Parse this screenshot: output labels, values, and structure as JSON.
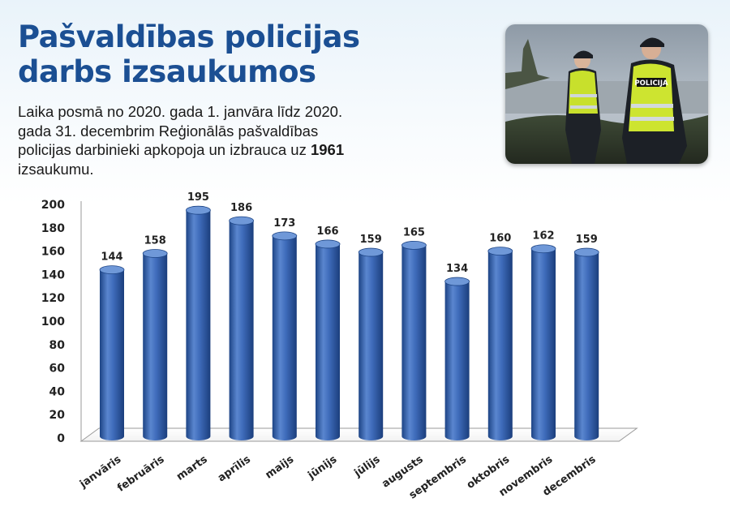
{
  "header": {
    "title_line1": "Pašvaldības policijas",
    "title_line2": "darbs izsaukumos"
  },
  "intro": {
    "text_before": "Laika posmā no 2020. gada 1. janvāra līdz 2020. gada 31. decembrim Reģionālās pašvaldības policijas darbinieki apkopoja un izbrauca uz ",
    "highlight": "1961",
    "text_after": " izsaukumu."
  },
  "photo": {
    "icon": "police-officers-photo",
    "vest_text": "POLICIJA"
  },
  "colors": {
    "title": "#1b4f93",
    "bar": "#3366bb",
    "bar_dark": "#1d4485",
    "bar_light": "#6f98d8"
  },
  "chart_data": {
    "type": "bar",
    "categories": [
      "janvāris",
      "februāris",
      "marts",
      "aprīlis",
      "maijs",
      "jūnijs",
      "jūlijs",
      "augusts",
      "septembris",
      "oktobris",
      "novembris",
      "decembris"
    ],
    "values": [
      144,
      158,
      195,
      186,
      173,
      166,
      159,
      165,
      134,
      160,
      162,
      159
    ],
    "title": "",
    "xlabel": "",
    "ylabel": "",
    "ylim": [
      0,
      200
    ],
    "yticks": [
      "0",
      "20",
      "40",
      "60",
      "80",
      "100",
      "120",
      "140",
      "160",
      "180",
      "200"
    ],
    "grid": false,
    "legend": "none",
    "style": "3d-cylinder"
  }
}
